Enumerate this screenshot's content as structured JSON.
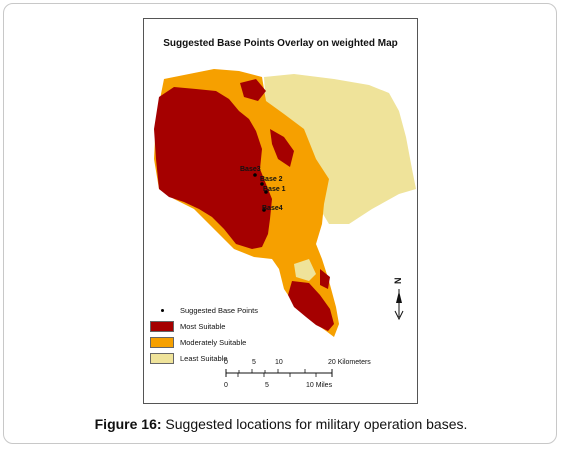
{
  "map": {
    "title": "Suggested Base Points Overlay on weighted Map",
    "base_labels": [
      "Base3",
      "Base 2",
      "Base 1",
      "Base4"
    ],
    "colors": {
      "most": "#a50000",
      "moderate": "#f6a000",
      "least": "#efe39a",
      "point": "#000000"
    }
  },
  "legend": {
    "items": [
      {
        "label": "Suggested Base Points",
        "symbol": "point"
      },
      {
        "label": "Most Suitable",
        "color": "#a50000"
      },
      {
        "label": "Moderately Suitable",
        "color": "#f6a000"
      },
      {
        "label": "Least Suitable",
        "color": "#efe39a"
      }
    ]
  },
  "scale_bar": {
    "km_ticks": [
      "0",
      "5",
      "10",
      "20 Kilometers"
    ],
    "mile_ticks": [
      "0",
      "5",
      "10 Miles"
    ]
  },
  "north_arrow": {
    "label": "N"
  },
  "caption": {
    "label": "Figure 16:",
    "text": " Suggested locations for military operation bases."
  }
}
